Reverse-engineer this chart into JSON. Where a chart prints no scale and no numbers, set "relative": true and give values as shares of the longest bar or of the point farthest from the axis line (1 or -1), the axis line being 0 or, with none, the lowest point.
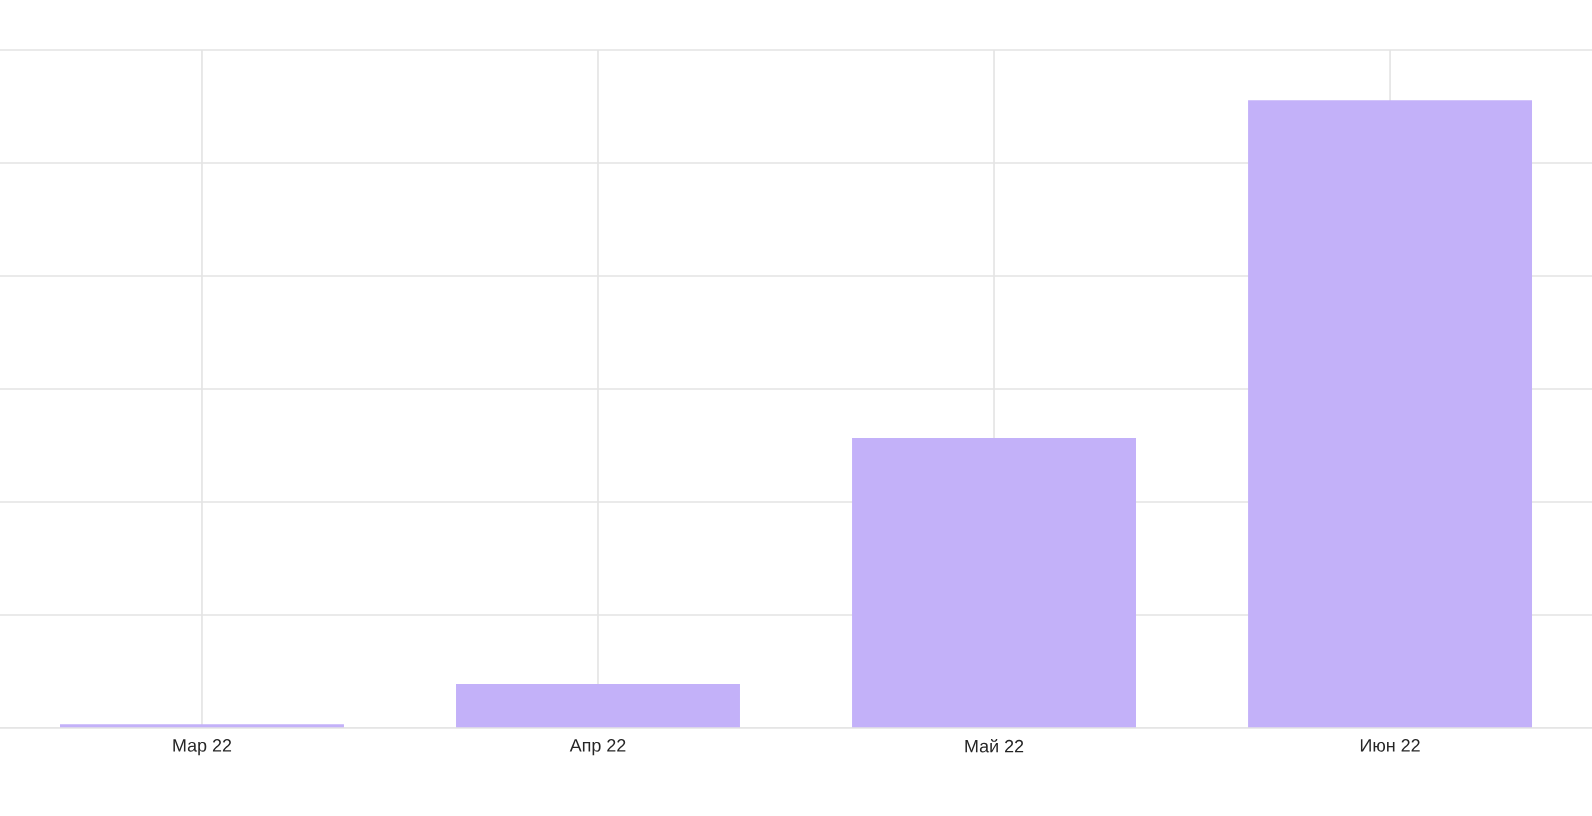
{
  "chart_data": {
    "type": "bar",
    "relative": true,
    "grid": true,
    "color": "#c3b1f9",
    "categories": [
      "Мар 22",
      "Апр 22",
      "Май 22",
      "Июн 22"
    ],
    "values": [
      0.006,
      0.07,
      0.462,
      1
    ]
  }
}
